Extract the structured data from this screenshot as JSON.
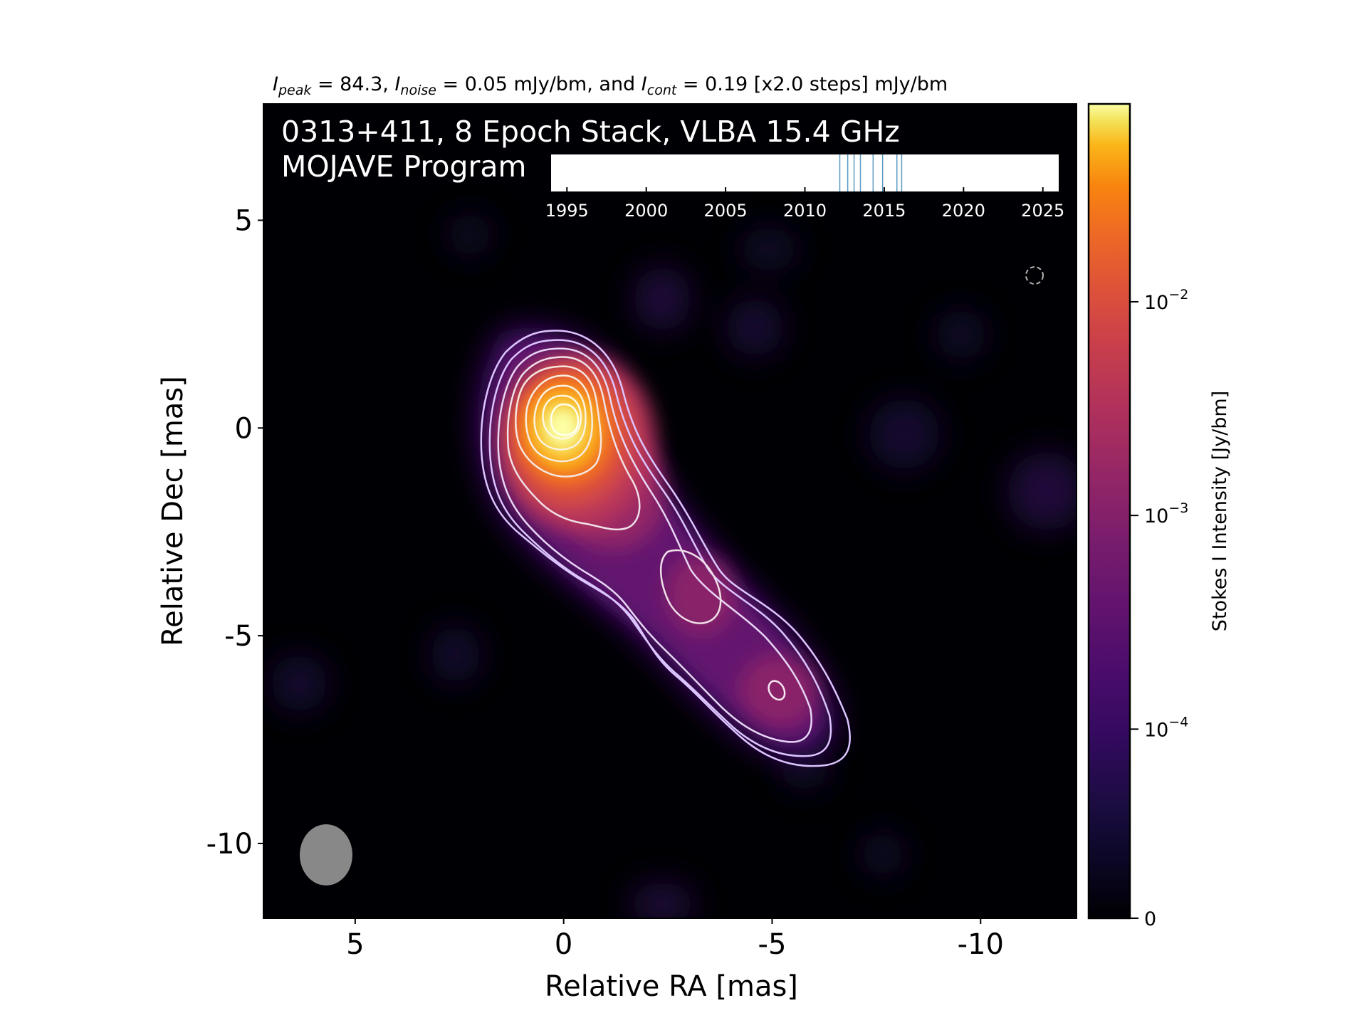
{
  "header": {
    "peak_var": "I",
    "peak_sub": "peak",
    "peak_text": " = 84.3, ",
    "noise_var": "I",
    "noise_sub": "noise",
    "noise_text": " = 0.05 mJy/bm, and ",
    "cont_var": "I",
    "cont_sub": "cont",
    "cont_text": " = 0.19 [x2.0 steps] mJy/bm"
  },
  "panel": {
    "title_line1": "0313+411, 8 Epoch Stack, VLBA 15.4 GHz",
    "title_line2": "MOJAVE Program"
  },
  "timeline": {
    "ticks": [
      "1995",
      "2000",
      "2005",
      "2010",
      "2015",
      "2020",
      "2025"
    ],
    "range": [
      1994,
      2026
    ],
    "epochs": [
      2012.2,
      2012.7,
      2013.1,
      2013.5,
      2014.3,
      2014.9,
      2015.8,
      2016.1
    ],
    "line_color": "#5b9bc4"
  },
  "colorbar": {
    "label": "Stokes I Intensity [Jy/bm]",
    "ticks": [
      {
        "value": 0,
        "base": "0",
        "exp": ""
      },
      {
        "value": 0.0001,
        "base": "10",
        "exp": "−4"
      },
      {
        "value": 0.001,
        "base": "10",
        "exp": "−3"
      },
      {
        "value": 0.01,
        "base": "10",
        "exp": "−2"
      }
    ],
    "colormap": "inferno"
  },
  "chart_data": {
    "type": "heatmap",
    "title": "0313+411, 8 Epoch Stack, VLBA 15.4 GHz",
    "xlabel": "Relative RA [mas]",
    "ylabel": "Relative Dec [mas]",
    "xlim": [
      7.2,
      -12.3
    ],
    "ylim": [
      -11.8,
      7.8
    ],
    "xticks": [
      5,
      0,
      -5,
      -10
    ],
    "yticks": [
      5,
      0,
      -5,
      -10
    ],
    "xtick_labels": [
      "5",
      "0",
      "-5",
      "-10"
    ],
    "ytick_labels": [
      "5",
      "0",
      "-5",
      "-10"
    ],
    "colorbar_label": "Stokes I Intensity [Jy/bm]",
    "peak_mJy_per_beam": 84.3,
    "noise_mJy_per_beam": 0.05,
    "lowest_contour_mJy_per_beam": 0.19,
    "contour_step_factor": 2.0,
    "components": [
      {
        "ra": 0.0,
        "dec": 0.0,
        "feature": "core"
      },
      {
        "ra": -3.3,
        "dec": -4.0,
        "feature": "jet knot"
      },
      {
        "ra": -5.2,
        "dec": -6.3,
        "feature": "jet knot"
      }
    ],
    "beam": {
      "center_ra": 5.7,
      "center_dec": -10.4,
      "major_mas": 1.5,
      "minor_mas": 1.3
    },
    "grid": false
  }
}
